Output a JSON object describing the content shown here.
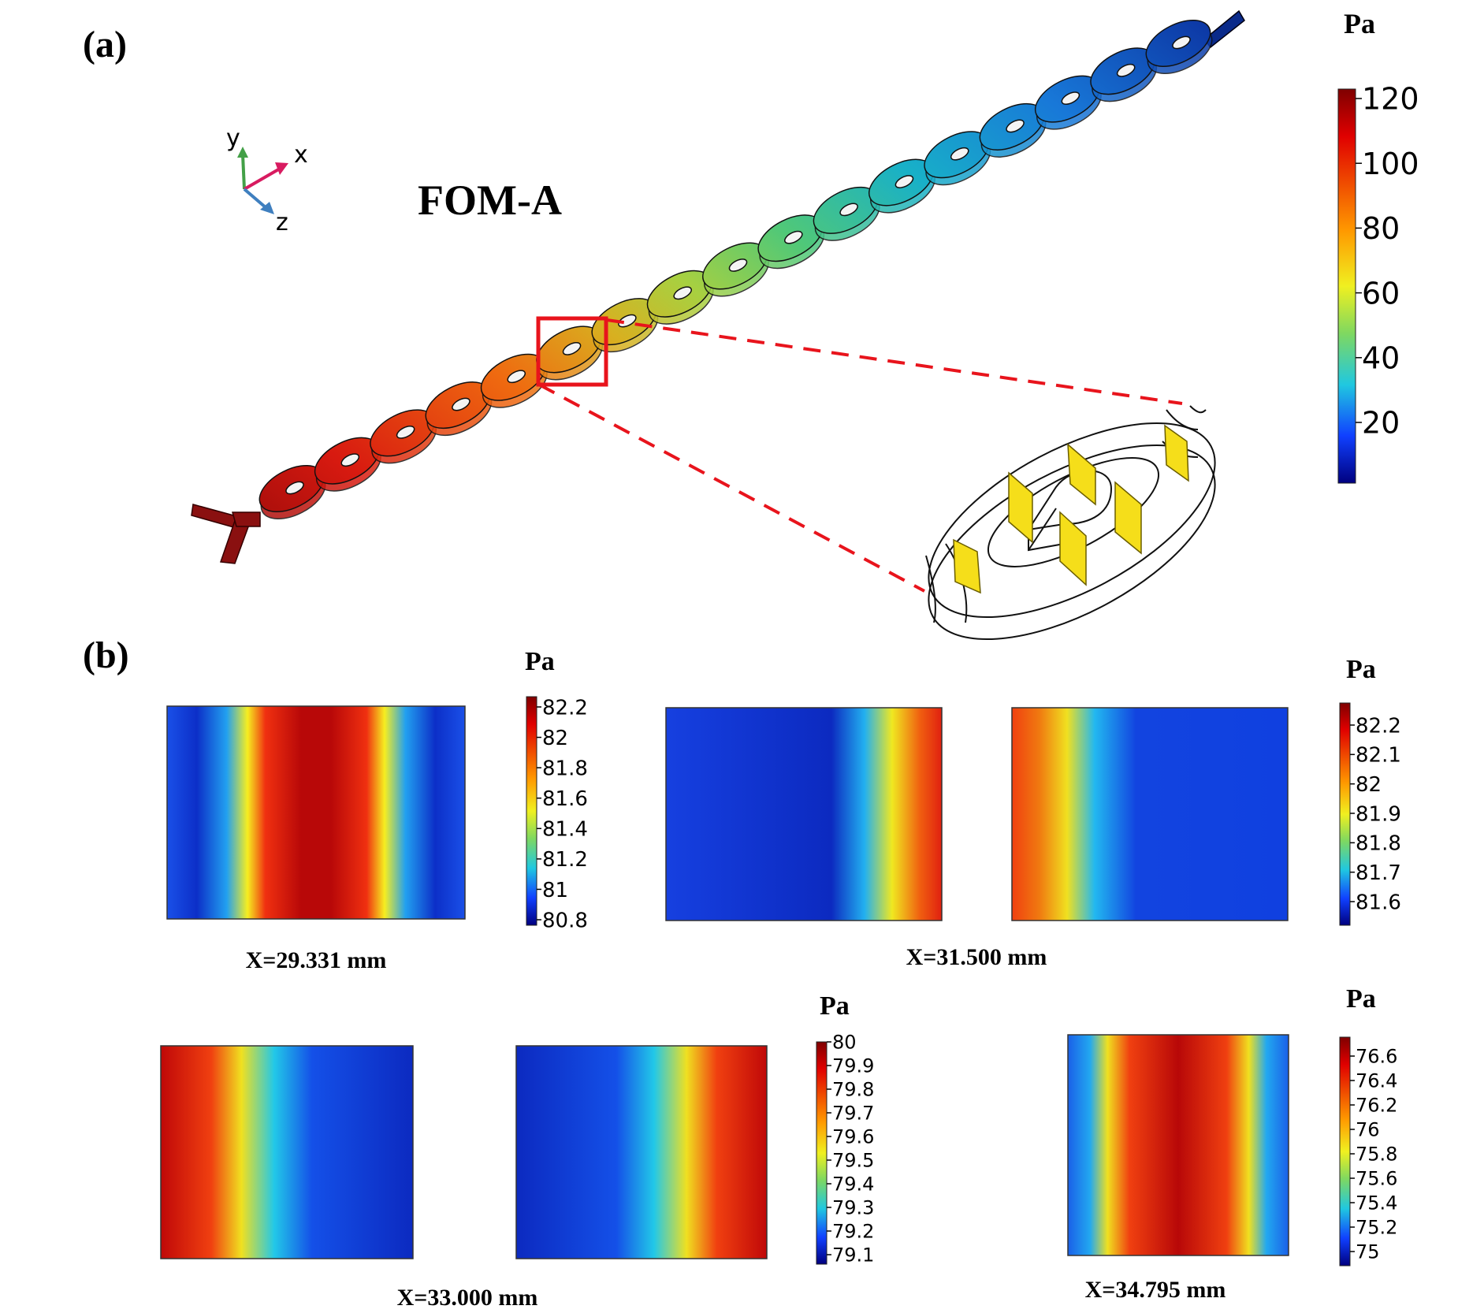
{
  "panel_a": {
    "label": "(a)",
    "title": "FOM-A",
    "axes": {
      "x": "x",
      "y": "y",
      "z": "z"
    },
    "colorbar": {
      "unit": "Pa",
      "ticks": [
        "120",
        "100",
        "80",
        "60",
        "40",
        "20"
      ]
    }
  },
  "panel_b": {
    "label": "(b)",
    "slices": [
      {
        "caption": "X=29.331 mm",
        "colorbar": {
          "unit": "Pa",
          "ticks": [
            "82.2",
            "82",
            "81.8",
            "81.6",
            "81.4",
            "81.2",
            "81",
            "80.8"
          ]
        }
      },
      {
        "caption": "X=31.500 mm",
        "colorbar": {
          "unit": "Pa",
          "ticks": [
            "82.2",
            "82.1",
            "82",
            "81.9",
            "81.8",
            "81.7",
            "81.6"
          ]
        }
      },
      {
        "caption": "X=33.000 mm",
        "colorbar": {
          "unit": "Pa",
          "ticks": [
            "80",
            "79.9",
            "79.8",
            "79.7",
            "79.6",
            "79.5",
            "79.4",
            "79.3",
            "79.2",
            "79.1"
          ]
        }
      },
      {
        "caption": "X=34.795 mm",
        "colorbar": {
          "unit": "Pa",
          "ticks": [
            "76.6",
            "76.4",
            "76.2",
            "76",
            "75.8",
            "75.6",
            "75.4",
            "75.2",
            "75"
          ]
        }
      }
    ]
  },
  "colors": {
    "zoom_box": "#e8141c",
    "baffle": "#f5de1a",
    "axis_x": "#d81b60",
    "axis_y": "#43a047",
    "axis_z": "#3f7fbf"
  }
}
